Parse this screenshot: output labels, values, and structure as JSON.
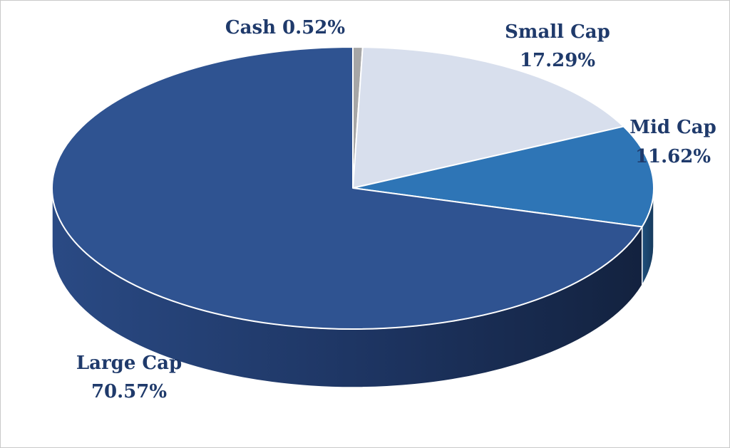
{
  "chart_data": {
    "type": "pie",
    "style": "3d",
    "title": "",
    "legend": "none",
    "slices": [
      {
        "name": "Cash",
        "value": 0.52,
        "value_label": "0.52%",
        "color": "#a6a6a6"
      },
      {
        "name": "Small Cap",
        "value": 17.29,
        "value_label": "17.29%",
        "color": "#d8dfed"
      },
      {
        "name": "Mid Cap",
        "value": 11.62,
        "value_label": "11.62%",
        "color": "#2e75b6"
      },
      {
        "name": "Large Cap",
        "value": 70.57,
        "value_label": "70.57%",
        "color": "#2f5391"
      }
    ]
  }
}
